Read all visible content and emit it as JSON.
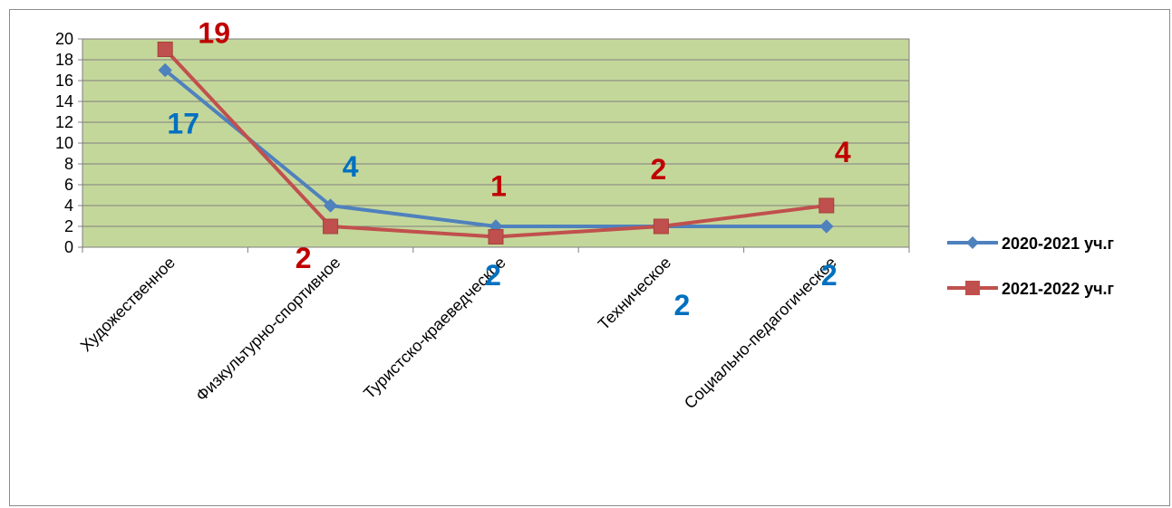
{
  "chart_data": {
    "type": "line",
    "categories": [
      "Художественное",
      "Физкультурно-спортивное",
      "Туристско-краеведческое",
      "Техническое",
      "Социально-педагогическое"
    ],
    "ylim": [
      0,
      20
    ],
    "yticks": [
      0,
      2,
      4,
      6,
      8,
      10,
      12,
      14,
      16,
      18,
      20
    ],
    "grid": true,
    "plot_background": "#c4d79b",
    "legend_position": "right",
    "series": [
      {
        "name": "2020-2021 уч.г",
        "values": [
          17,
          4,
          2,
          2,
          2
        ],
        "color": "#4f81bd",
        "label_color": "#0070c0",
        "marker": "diamond",
        "data_labels": [
          "17",
          "4",
          "2",
          "2",
          "2"
        ]
      },
      {
        "name": "2021-2022 уч.г",
        "values": [
          19,
          2,
          1,
          2,
          4
        ],
        "color": "#c0504d",
        "label_color": "#c00000",
        "marker": "square",
        "data_labels": [
          "19",
          "2",
          "1",
          "2",
          "4"
        ]
      }
    ]
  }
}
